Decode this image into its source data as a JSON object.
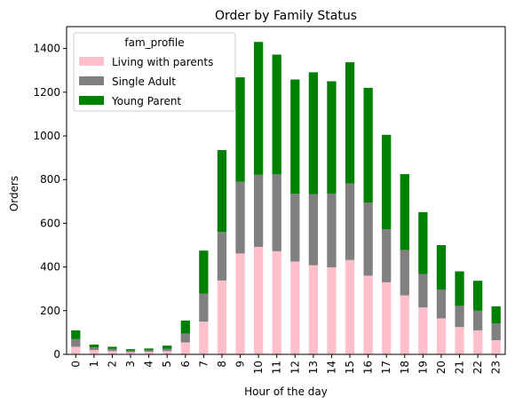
{
  "chart_data": {
    "type": "bar",
    "stacked": true,
    "title": "Order by Family Status",
    "xlabel": "Hour of the day",
    "ylabel": "Orders",
    "ylim": [
      0,
      1500
    ],
    "yticks": [
      0,
      200,
      400,
      600,
      800,
      1000,
      1200,
      1400
    ],
    "categories": [
      "0",
      "1",
      "2",
      "3",
      "4",
      "5",
      "6",
      "7",
      "8",
      "9",
      "10",
      "11",
      "12",
      "13",
      "14",
      "15",
      "16",
      "17",
      "18",
      "19",
      "20",
      "21",
      "22",
      "23"
    ],
    "grid": false,
    "legend": {
      "title": "fam_profile",
      "placement": "top-left"
    },
    "series": [
      {
        "name": "Living with parents",
        "color": "#ffc0cb",
        "values": [
          35,
          20,
          15,
          10,
          12,
          15,
          55,
          150,
          338,
          462,
          492,
          472,
          425,
          408,
          398,
          432,
          360,
          330,
          270,
          215,
          165,
          125,
          110,
          65
        ]
      },
      {
        "name": "Single Adult",
        "color": "#808080",
        "values": [
          35,
          12,
          10,
          7,
          8,
          10,
          40,
          128,
          222,
          328,
          330,
          352,
          310,
          325,
          338,
          350,
          335,
          243,
          208,
          153,
          132,
          97,
          90,
          77
        ]
      },
      {
        "name": "Young Parent",
        "color": "#008000",
        "values": [
          40,
          13,
          10,
          7,
          7,
          15,
          60,
          197,
          375,
          478,
          608,
          548,
          523,
          558,
          514,
          555,
          525,
          432,
          347,
          283,
          203,
          158,
          137,
          78
        ]
      }
    ]
  }
}
